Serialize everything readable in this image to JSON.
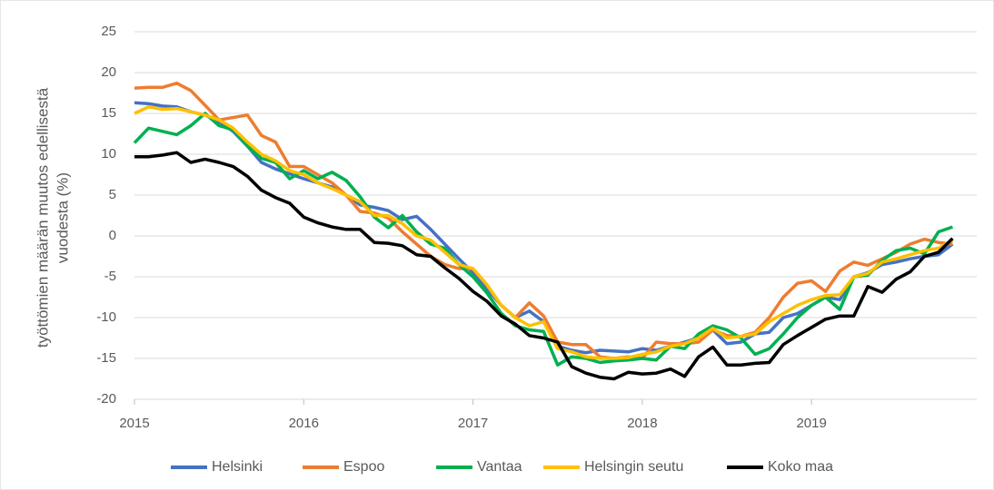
{
  "chart_data": {
    "type": "line",
    "ylabel": [
      "työttömien määrän muutos edellisestä",
      "vuodesta  (%)"
    ],
    "x": [
      2015,
      2015.083,
      2015.167,
      2015.25,
      2015.333,
      2015.417,
      2015.5,
      2015.583,
      2015.667,
      2015.75,
      2015.833,
      2015.917,
      2016,
      2016.083,
      2016.167,
      2016.25,
      2016.333,
      2016.417,
      2016.5,
      2016.583,
      2016.667,
      2016.75,
      2016.833,
      2016.917,
      2017,
      2017.083,
      2017.167,
      2017.25,
      2017.333,
      2017.417,
      2017.5,
      2017.583,
      2017.667,
      2017.75,
      2017.833,
      2017.917,
      2018,
      2018.083,
      2018.167,
      2018.25,
      2018.333,
      2018.417,
      2018.5,
      2018.583,
      2018.667,
      2018.75,
      2018.833,
      2018.917,
      2019,
      2019.083,
      2019.167,
      2019.25,
      2019.333,
      2019.417,
      2019.5,
      2019.583,
      2019.667,
      2019.75,
      2019.833
    ],
    "series": [
      {
        "name": "Helsinki",
        "color": "#4472c4",
        "values": [
          16.3,
          16.2,
          15.9,
          15.8,
          15.2,
          14.8,
          14.0,
          12.8,
          11.0,
          9.0,
          8.2,
          7.6,
          7.0,
          6.5,
          6.0,
          5.0,
          3.8,
          3.5,
          3.1,
          2.0,
          2.4,
          0.8,
          -1.0,
          -2.8,
          -4.5,
          -6.5,
          -8.5,
          -10.0,
          -9.2,
          -10.5,
          -13.5,
          -14.0,
          -14.3,
          -14.0,
          -14.1,
          -14.2,
          -13.8,
          -14.0,
          -13.5,
          -13.0,
          -12.5,
          -11.5,
          -13.2,
          -13.0,
          -12.0,
          -11.8,
          -10.0,
          -9.5,
          -8.5,
          -7.5,
          -7.8,
          -5.0,
          -4.5,
          -3.5,
          -3.2,
          -2.8,
          -2.5,
          -2.3,
          -1.0
        ]
      },
      {
        "name": "Espoo",
        "color": "#ed7d31",
        "values": [
          18.1,
          18.2,
          18.2,
          18.7,
          17.8,
          16.0,
          14.2,
          14.5,
          14.8,
          12.3,
          11.5,
          8.5,
          8.5,
          7.5,
          6.5,
          5.0,
          3.0,
          2.8,
          2.2,
          0.5,
          -1.0,
          -2.5,
          -3.5,
          -4.0,
          -4.0,
          -6.0,
          -8.5,
          -10.0,
          -8.2,
          -9.8,
          -13.0,
          -13.3,
          -13.3,
          -14.8,
          -15.0,
          -14.8,
          -15.0,
          -13.0,
          -13.2,
          -13.2,
          -13.0,
          -11.5,
          -12.2,
          -12.3,
          -11.8,
          -10.0,
          -7.5,
          -5.8,
          -5.5,
          -6.8,
          -4.3,
          -3.2,
          -3.6,
          -2.8,
          -2.0,
          -1.0,
          -0.4,
          -0.8,
          -1.0
        ]
      },
      {
        "name": "Vantaa",
        "color": "#00b050",
        "values": [
          11.4,
          13.2,
          12.8,
          12.4,
          13.5,
          15.0,
          13.5,
          13.0,
          11.0,
          9.5,
          9.0,
          7.0,
          8.0,
          7.0,
          7.8,
          6.8,
          4.8,
          2.3,
          1.0,
          2.5,
          0.5,
          -1.0,
          -1.5,
          -3.5,
          -5.0,
          -7.0,
          -9.5,
          -11.0,
          -11.5,
          -11.7,
          -15.8,
          -14.8,
          -15.0,
          -15.5,
          -15.3,
          -15.2,
          -15.0,
          -15.2,
          -13.5,
          -13.8,
          -12.0,
          -11.0,
          -11.5,
          -12.5,
          -14.5,
          -13.8,
          -12.0,
          -10.0,
          -8.5,
          -7.5,
          -9.0,
          -5.0,
          -4.8,
          -3.0,
          -1.8,
          -1.5,
          -2.2,
          0.5,
          1.1
        ]
      },
      {
        "name": "Helsingin seutu",
        "color": "#ffc000",
        "values": [
          15.0,
          15.8,
          15.5,
          15.6,
          15.2,
          14.8,
          14.2,
          13.2,
          11.5,
          10.0,
          9.2,
          8.0,
          7.5,
          6.5,
          5.8,
          5.0,
          4.2,
          2.5,
          2.5,
          1.5,
          0.0,
          -0.5,
          -2.0,
          -3.5,
          -4.0,
          -6.0,
          -8.5,
          -10.0,
          -11.0,
          -10.5,
          -13.8,
          -14.2,
          -14.8,
          -15.0,
          -15.0,
          -14.9,
          -14.5,
          -14.2,
          -13.5,
          -13.2,
          -12.5,
          -11.3,
          -12.5,
          -12.3,
          -12.0,
          -10.5,
          -9.5,
          -8.5,
          -7.8,
          -7.3,
          -7.2,
          -5.0,
          -4.6,
          -3.2,
          -2.8,
          -2.3,
          -1.8,
          -1.5,
          -0.5
        ]
      },
      {
        "name": "Koko maa",
        "color": "#000000",
        "values": [
          9.7,
          9.7,
          9.9,
          10.2,
          9.0,
          9.4,
          9.0,
          8.5,
          7.3,
          5.6,
          4.7,
          4.0,
          2.3,
          1.6,
          1.1,
          0.8,
          0.8,
          -0.8,
          -0.9,
          -1.2,
          -2.3,
          -2.5,
          -3.9,
          -5.2,
          -6.8,
          -8.0,
          -9.8,
          -10.8,
          -12.2,
          -12.5,
          -13.0,
          -16.0,
          -16.8,
          -17.3,
          -17.5,
          -16.7,
          -16.9,
          -16.8,
          -16.3,
          -17.2,
          -14.8,
          -13.6,
          -15.8,
          -15.8,
          -15.6,
          -15.5,
          -13.3,
          -12.2,
          -11.2,
          -10.2,
          -9.8,
          -9.8,
          -6.2,
          -6.9,
          -5.3,
          -4.4,
          -2.5,
          -2.0,
          -0.3
        ]
      }
    ],
    "xlim": [
      2015,
      2019.917
    ],
    "xticks": [
      2015,
      2016,
      2017,
      2018,
      2019
    ],
    "ylim": [
      -20,
      25
    ],
    "yticks": [
      -20,
      -15,
      -10,
      -5,
      0,
      5,
      10,
      15,
      20,
      25
    ],
    "grid": true,
    "legend": "bottom"
  }
}
